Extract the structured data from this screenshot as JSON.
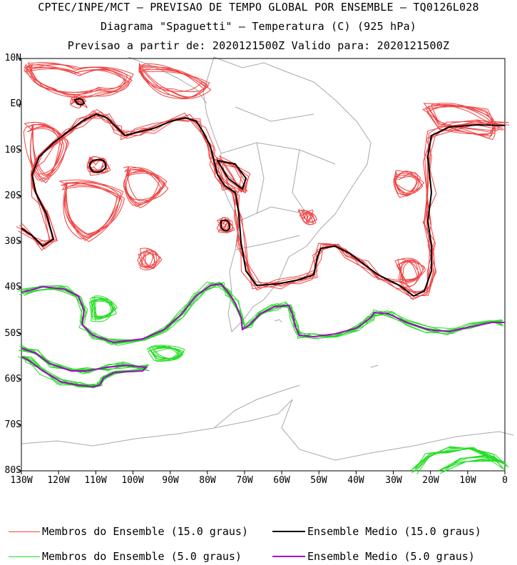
{
  "title": {
    "line1": "CPTEC/INPE/MCT – PREVISAO DE TEMPO GLOBAL POR ENSEMBLE – TQ0126L028",
    "line2": "Diagrama \"Spaguetti\" – Temperatura (C) (925 hPa)",
    "line3": "Previsao a partir de: 2020121500Z  Valido para: 2020121500Z"
  },
  "axes": {
    "lat_labels": [
      "10N",
      "EQ",
      "10S",
      "20S",
      "30S",
      "40S",
      "50S",
      "60S",
      "70S",
      "80S"
    ],
    "lon_labels": [
      "130W",
      "120W",
      "110W",
      "100W",
      "90W",
      "80W",
      "70W",
      "60W",
      "50W",
      "40W",
      "30W",
      "20W",
      "10W",
      "0"
    ],
    "lat_range": [
      -80,
      10
    ],
    "lon_range": [
      -130,
      0
    ]
  },
  "legend": {
    "members_15": "Membros do Ensemble (15.0 graus)",
    "mean_15": "Ensemble Medio (15.0 graus)",
    "members_5": "Membros do Ensemble (5.0 graus)",
    "mean_5": "Ensemble Medio (5.0 graus)"
  },
  "colors": {
    "members_15": "#f04040",
    "mean_15": "#000000",
    "members_5": "#22dd22",
    "mean_5": "#aa00cc",
    "coast": "#a8a8a8"
  }
}
